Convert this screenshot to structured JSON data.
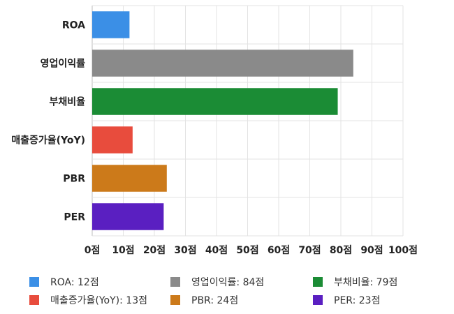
{
  "chart_data": {
    "type": "bar",
    "orientation": "horizontal",
    "categories": [
      "ROA",
      "영업이익률",
      "부채비율",
      "매출증가율(YoY)",
      "PBR",
      "PER"
    ],
    "values": [
      12,
      84,
      79,
      13,
      24,
      23
    ],
    "colors": [
      "#3b8fe6",
      "#8a8a8a",
      "#1b8c35",
      "#e84c3d",
      "#cc7a1a",
      "#5a1fc1"
    ],
    "xlim": [
      0,
      100
    ],
    "x_ticks": [
      0,
      10,
      20,
      30,
      40,
      50,
      60,
      70,
      80,
      90,
      100
    ],
    "x_tick_labels": [
      "0점",
      "10점",
      "20점",
      "30점",
      "40점",
      "50점",
      "60점",
      "70점",
      "80점",
      "90점",
      "100점"
    ],
    "grid": true,
    "legend_position": "bottom",
    "legend": [
      {
        "label": "ROA: 12점",
        "color": "#3b8fe6"
      },
      {
        "label": "영업이익률: 84점",
        "color": "#8a8a8a"
      },
      {
        "label": "부채비율: 79점",
        "color": "#1b8c35"
      },
      {
        "label": "매출증가율(YoY): 13점",
        "color": "#e84c3d"
      },
      {
        "label": "PBR: 24점",
        "color": "#cc7a1a"
      },
      {
        "label": "PER: 23점",
        "color": "#5a1fc1"
      }
    ]
  }
}
